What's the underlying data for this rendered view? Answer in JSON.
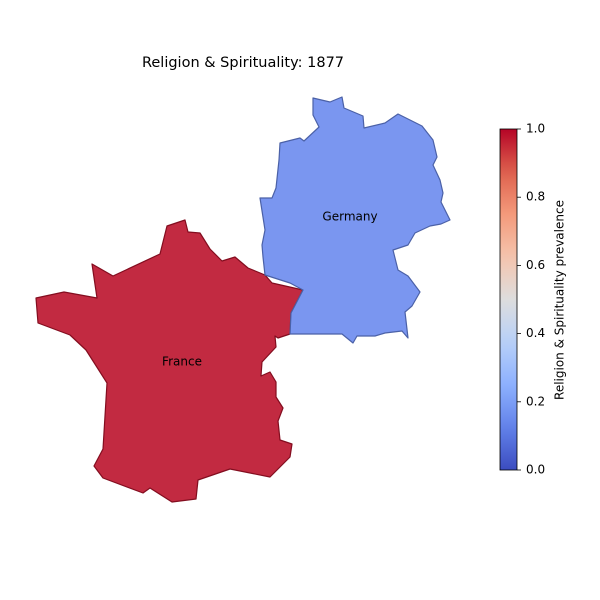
{
  "chart_data": {
    "type": "choropleth",
    "title": "Religion & Spirituality: 1877",
    "regions": [
      {
        "name": "France",
        "value": 0.98
      },
      {
        "name": "Germany",
        "value": 0.15
      }
    ],
    "colormap": "coolwarm",
    "colorbar": {
      "label": "Religion & Spirituality prevalence",
      "lim": [
        0,
        1
      ],
      "ticks": [
        {
          "value": 0,
          "label": "0.0"
        },
        {
          "value": 0.2,
          "label": "0.2"
        },
        {
          "value": 0.4,
          "label": "0.4"
        },
        {
          "value": 0.6,
          "label": "0.6"
        },
        {
          "value": 0.8,
          "label": "0.8"
        },
        {
          "value": 1,
          "label": "1.0"
        }
      ]
    }
  }
}
